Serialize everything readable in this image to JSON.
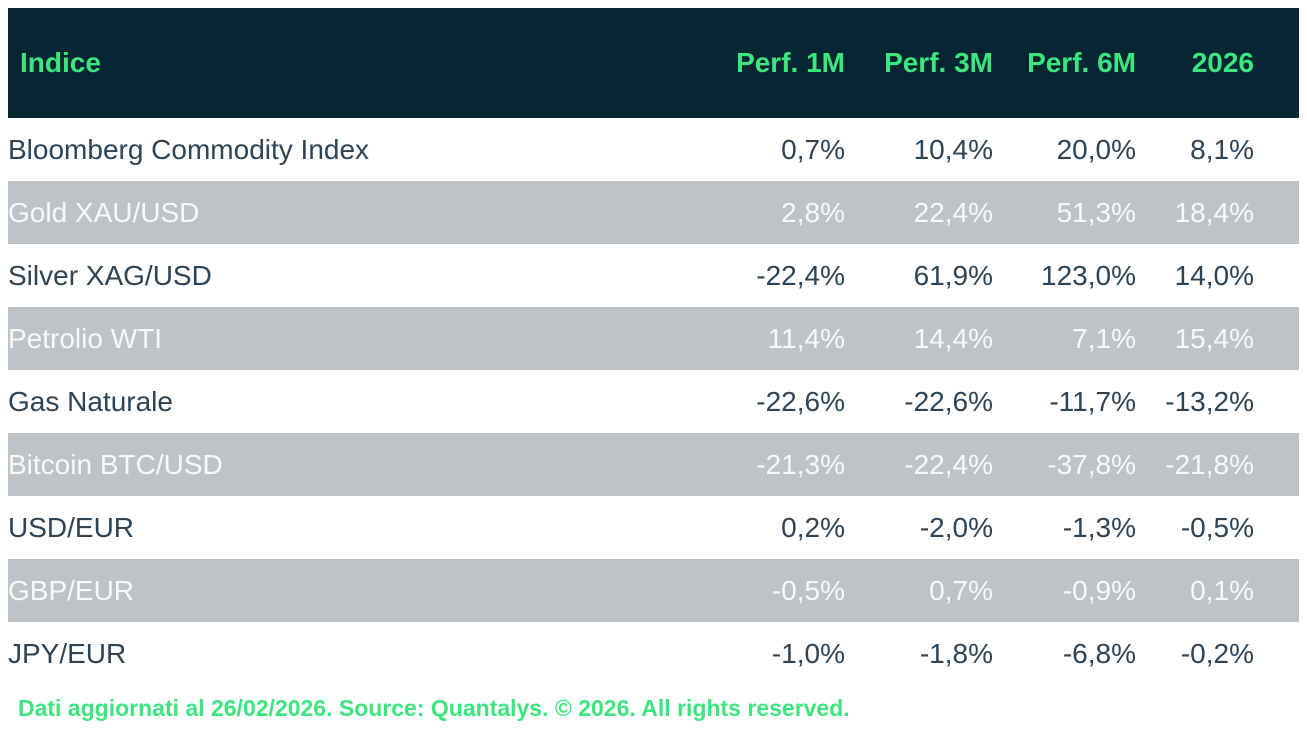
{
  "table": {
    "columns": {
      "label": "Indice",
      "perf_1m": "Perf. 1M",
      "perf_3m": "Perf. 3M",
      "perf_6m": "Perf. 6M",
      "ytd": "2026"
    },
    "rows": [
      {
        "label": "Bloomberg Commodity Index",
        "values": [
          "0,7%",
          "10,4%",
          "20,0%",
          "8,1%"
        ]
      },
      {
        "label": "Gold XAU/USD",
        "values": [
          "2,8%",
          "22,4%",
          "51,3%",
          "18,4%"
        ]
      },
      {
        "label": "Silver XAG/USD",
        "values": [
          "-22,4%",
          "61,9%",
          "123,0%",
          "14,0%"
        ]
      },
      {
        "label": "Petrolio WTI",
        "values": [
          "11,4%",
          "14,4%",
          "7,1%",
          "15,4%"
        ]
      },
      {
        "label": "Gas Naturale",
        "values": [
          "-22,6%",
          "-22,6%",
          "-11,7%",
          "-13,2%"
        ]
      },
      {
        "label": "Bitcoin BTC/USD",
        "values": [
          "-21,3%",
          "-22,4%",
          "-37,8%",
          "-21,8%"
        ]
      },
      {
        "label": "USD/EUR",
        "values": [
          "0,2%",
          "-2,0%",
          "-1,3%",
          "-0,5%"
        ]
      },
      {
        "label": "GBP/EUR",
        "values": [
          "-0,5%",
          "0,7%",
          "-0,9%",
          "0,1%"
        ]
      },
      {
        "label": "JPY/EUR",
        "values": [
          "-1,0%",
          "-1,8%",
          "-6,8%",
          "-0,2%"
        ]
      }
    ]
  },
  "footer": {
    "text": "Dati aggiornati al 26/02/2026. Source: Quantalys. © 2026. All rights reserved."
  },
  "colors": {
    "header_bg": "#072633",
    "accent_green": "#3de57e",
    "row_alt_bg": "#bec3c7",
    "row_text_dark": "#2d4456",
    "row_text_light": "#f7f9f9",
    "page_bg": "#ffffff"
  },
  "chart_data": {
    "type": "table",
    "title": "Indice",
    "unit": "%",
    "decimal_separator": ",",
    "categories": [
      "Bloomberg Commodity Index",
      "Gold XAU/USD",
      "Silver XAG/USD",
      "Petrolio WTI",
      "Gas Naturale",
      "Bitcoin BTC/USD",
      "USD/EUR",
      "GBP/EUR",
      "JPY/EUR"
    ],
    "series": [
      {
        "name": "Perf. 1M",
        "values": [
          0.7,
          2.8,
          -22.4,
          11.4,
          -22.6,
          -21.3,
          0.2,
          -0.5,
          -1.0
        ]
      },
      {
        "name": "Perf. 3M",
        "values": [
          10.4,
          22.4,
          61.9,
          14.4,
          -22.6,
          -22.4,
          -2.0,
          0.7,
          -1.8
        ]
      },
      {
        "name": "Perf. 6M",
        "values": [
          20.0,
          51.3,
          123.0,
          7.1,
          -11.7,
          -37.8,
          -1.3,
          -0.9,
          -6.8
        ]
      },
      {
        "name": "2026",
        "values": [
          8.1,
          18.4,
          14.0,
          15.4,
          -13.2,
          -21.8,
          -0.5,
          0.1,
          -0.2
        ]
      }
    ],
    "annotations": [
      "Dati aggiornati al 26/02/2026. Source: Quantalys. © 2026. All rights reserved."
    ]
  }
}
